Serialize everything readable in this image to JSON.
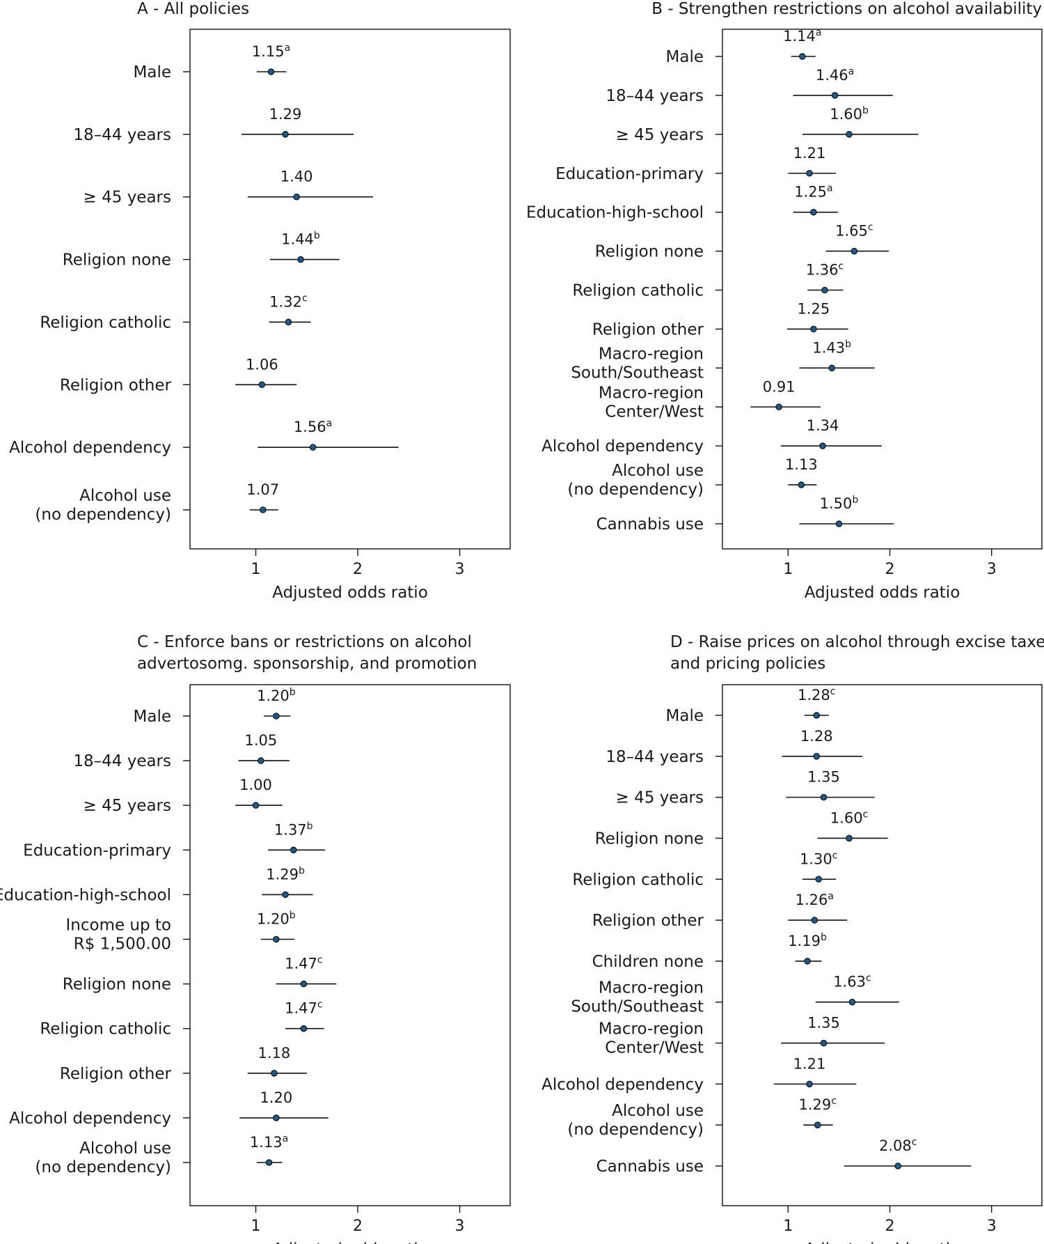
{
  "chart_data": [
    {
      "type": "forest",
      "title": "A - All policies",
      "xlabel": "Adjusted odds ratio",
      "xticks": [
        "1",
        "2",
        "3"
      ],
      "xlim": [
        0.4,
        3.1
      ],
      "rows": [
        {
          "label": "Male",
          "or": 1.15,
          "sup": "a",
          "ci": [
            1.01,
            1.3
          ]
        },
        {
          "label": "18–44 years",
          "or": 1.29,
          "sup": "",
          "ci": [
            0.86,
            1.96
          ]
        },
        {
          "label": "≥ 45 years",
          "or": 1.4,
          "sup": "",
          "ci": [
            0.92,
            2.15
          ]
        },
        {
          "label": "Religion none",
          "or": 1.44,
          "sup": "b",
          "ci": [
            1.14,
            1.82
          ]
        },
        {
          "label": "Religion catholic",
          "or": 1.32,
          "sup": "c",
          "ci": [
            1.13,
            1.54
          ]
        },
        {
          "label": "Religion other",
          "or": 1.06,
          "sup": "",
          "ci": [
            0.8,
            1.4
          ]
        },
        {
          "label": "Alcohol dependency",
          "or": 1.56,
          "sup": "a",
          "ci": [
            1.02,
            2.4
          ]
        },
        {
          "label": [
            "Alcohol use",
            "(no dependency)"
          ],
          "or": 1.07,
          "sup": "",
          "ci": [
            0.94,
            1.22
          ]
        }
      ]
    },
    {
      "type": "forest",
      "title": "B - Strengthen restrictions on alcohol availability",
      "xlabel": "Adjusted odds ratio",
      "xticks": [
        "1",
        "2",
        "3"
      ],
      "xlim": [
        0.4,
        3.1
      ],
      "rows": [
        {
          "label": "Male",
          "or": 1.14,
          "sup": "a",
          "ci": [
            1.03,
            1.27
          ]
        },
        {
          "label": "18–44 years",
          "or": 1.46,
          "sup": "a",
          "ci": [
            1.05,
            2.03
          ]
        },
        {
          "label": "≥ 45 years",
          "or": 1.6,
          "sup": "b",
          "ci": [
            1.14,
            2.28
          ]
        },
        {
          "label": "Education-primary",
          "or": 1.21,
          "sup": "",
          "ci": [
            1.0,
            1.47
          ]
        },
        {
          "label": "Education-high-school",
          "or": 1.25,
          "sup": "a",
          "ci": [
            1.05,
            1.49
          ]
        },
        {
          "label": "Religion none",
          "or": 1.65,
          "sup": "c",
          "ci": [
            1.37,
            1.99
          ]
        },
        {
          "label": "Religion catholic",
          "or": 1.36,
          "sup": "c",
          "ci": [
            1.19,
            1.54
          ]
        },
        {
          "label": "Religion other",
          "or": 1.25,
          "sup": "",
          "ci": [
            0.99,
            1.59
          ]
        },
        {
          "label": [
            "Macro-region",
            "South/Southeast"
          ],
          "or": 1.43,
          "sup": "b",
          "ci": [
            1.11,
            1.85
          ]
        },
        {
          "label": [
            "Macro-region",
            "Center/West"
          ],
          "or": 0.91,
          "sup": "",
          "ci": [
            0.63,
            1.32
          ]
        },
        {
          "label": "Alcohol dependency",
          "or": 1.34,
          "sup": "",
          "ci": [
            0.93,
            1.92
          ]
        },
        {
          "label": [
            "Alcohol use",
            "(no dependency)"
          ],
          "or": 1.13,
          "sup": "",
          "ci": [
            1.0,
            1.28
          ]
        },
        {
          "label": "Cannabis use",
          "or": 1.5,
          "sup": "b",
          "ci": [
            1.11,
            2.04
          ]
        }
      ]
    },
    {
      "type": "forest",
      "title": [
        "C - Enforce bans or restrictions on alcohol",
        "advertosomg. sponsorship, and promotion"
      ],
      "xlabel": "Adjusted odds ratio",
      "xticks": [
        "1",
        "2",
        "3"
      ],
      "xlim": [
        0.4,
        3.1
      ],
      "rows": [
        {
          "label": "Male",
          "or": 1.2,
          "sup": "b",
          "ci": [
            1.08,
            1.34
          ]
        },
        {
          "label": "18–44 years",
          "or": 1.05,
          "sup": "",
          "ci": [
            0.83,
            1.33
          ]
        },
        {
          "label": "≥ 45 years",
          "or": 1.0,
          "sup": "",
          "ci": [
            0.8,
            1.26
          ]
        },
        {
          "label": "Education-primary",
          "or": 1.37,
          "sup": "b",
          "ci": [
            1.12,
            1.68
          ]
        },
        {
          "label": "Education-high-school",
          "or": 1.29,
          "sup": "b",
          "ci": [
            1.06,
            1.56
          ]
        },
        {
          "label": [
            "Income up to",
            "R$ 1,500.00"
          ],
          "or": 1.2,
          "sup": "b",
          "ci": [
            1.05,
            1.38
          ]
        },
        {
          "label": "Religion none",
          "or": 1.47,
          "sup": "c",
          "ci": [
            1.2,
            1.79
          ]
        },
        {
          "label": "Religion catholic",
          "or": 1.47,
          "sup": "c",
          "ci": [
            1.29,
            1.67
          ]
        },
        {
          "label": "Religion other",
          "or": 1.18,
          "sup": "",
          "ci": [
            0.92,
            1.5
          ]
        },
        {
          "label": "Alcohol dependency",
          "or": 1.2,
          "sup": "",
          "ci": [
            0.84,
            1.71
          ]
        },
        {
          "label": [
            "Alcohol use",
            "(no dependency)"
          ],
          "or": 1.13,
          "sup": "a",
          "ci": [
            1.01,
            1.26
          ]
        }
      ]
    },
    {
      "type": "forest",
      "title": [
        "D - Raise prices on alcohol through excise taxes",
        "and pricing policies"
      ],
      "xlabel": "Adjusted odds ratio",
      "xticks": [
        "1",
        "2",
        "3"
      ],
      "xlim": [
        0.4,
        3.1
      ],
      "rows": [
        {
          "label": "Male",
          "or": 1.28,
          "sup": "c",
          "ci": [
            1.16,
            1.4
          ]
        },
        {
          "label": "18–44 years",
          "or": 1.28,
          "sup": "",
          "ci": [
            0.94,
            1.73
          ]
        },
        {
          "label": "≥ 45 years",
          "or": 1.35,
          "sup": "",
          "ci": [
            0.98,
            1.85
          ]
        },
        {
          "label": "Religion none",
          "or": 1.6,
          "sup": "c",
          "ci": [
            1.29,
            1.98
          ]
        },
        {
          "label": "Religion catholic",
          "or": 1.3,
          "sup": "c",
          "ci": [
            1.14,
            1.47
          ]
        },
        {
          "label": "Religion other",
          "or": 1.26,
          "sup": "a",
          "ci": [
            1.0,
            1.58
          ]
        },
        {
          "label": "Children none",
          "or": 1.19,
          "sup": "b",
          "ci": [
            1.07,
            1.33
          ]
        },
        {
          "label": [
            "Macro-region",
            "South/Southeast"
          ],
          "or": 1.63,
          "sup": "c",
          "ci": [
            1.27,
            2.09
          ]
        },
        {
          "label": [
            "Macro-region",
            "Center/West"
          ],
          "or": 1.35,
          "sup": "",
          "ci": [
            0.93,
            1.95
          ]
        },
        {
          "label": "Alcohol dependency",
          "or": 1.21,
          "sup": "",
          "ci": [
            0.86,
            1.67
          ]
        },
        {
          "label": [
            "Alcohol use",
            "(no dependency)"
          ],
          "or": 1.29,
          "sup": "c",
          "ci": [
            1.15,
            1.44
          ]
        },
        {
          "label": "Cannabis use",
          "or": 2.08,
          "sup": "c",
          "ci": [
            1.55,
            2.8
          ]
        }
      ]
    }
  ],
  "style": {
    "point_color": "#1f5a8a",
    "point_stroke": "#111111",
    "line_color": "#111111",
    "text_color": "#1a1a1a"
  }
}
